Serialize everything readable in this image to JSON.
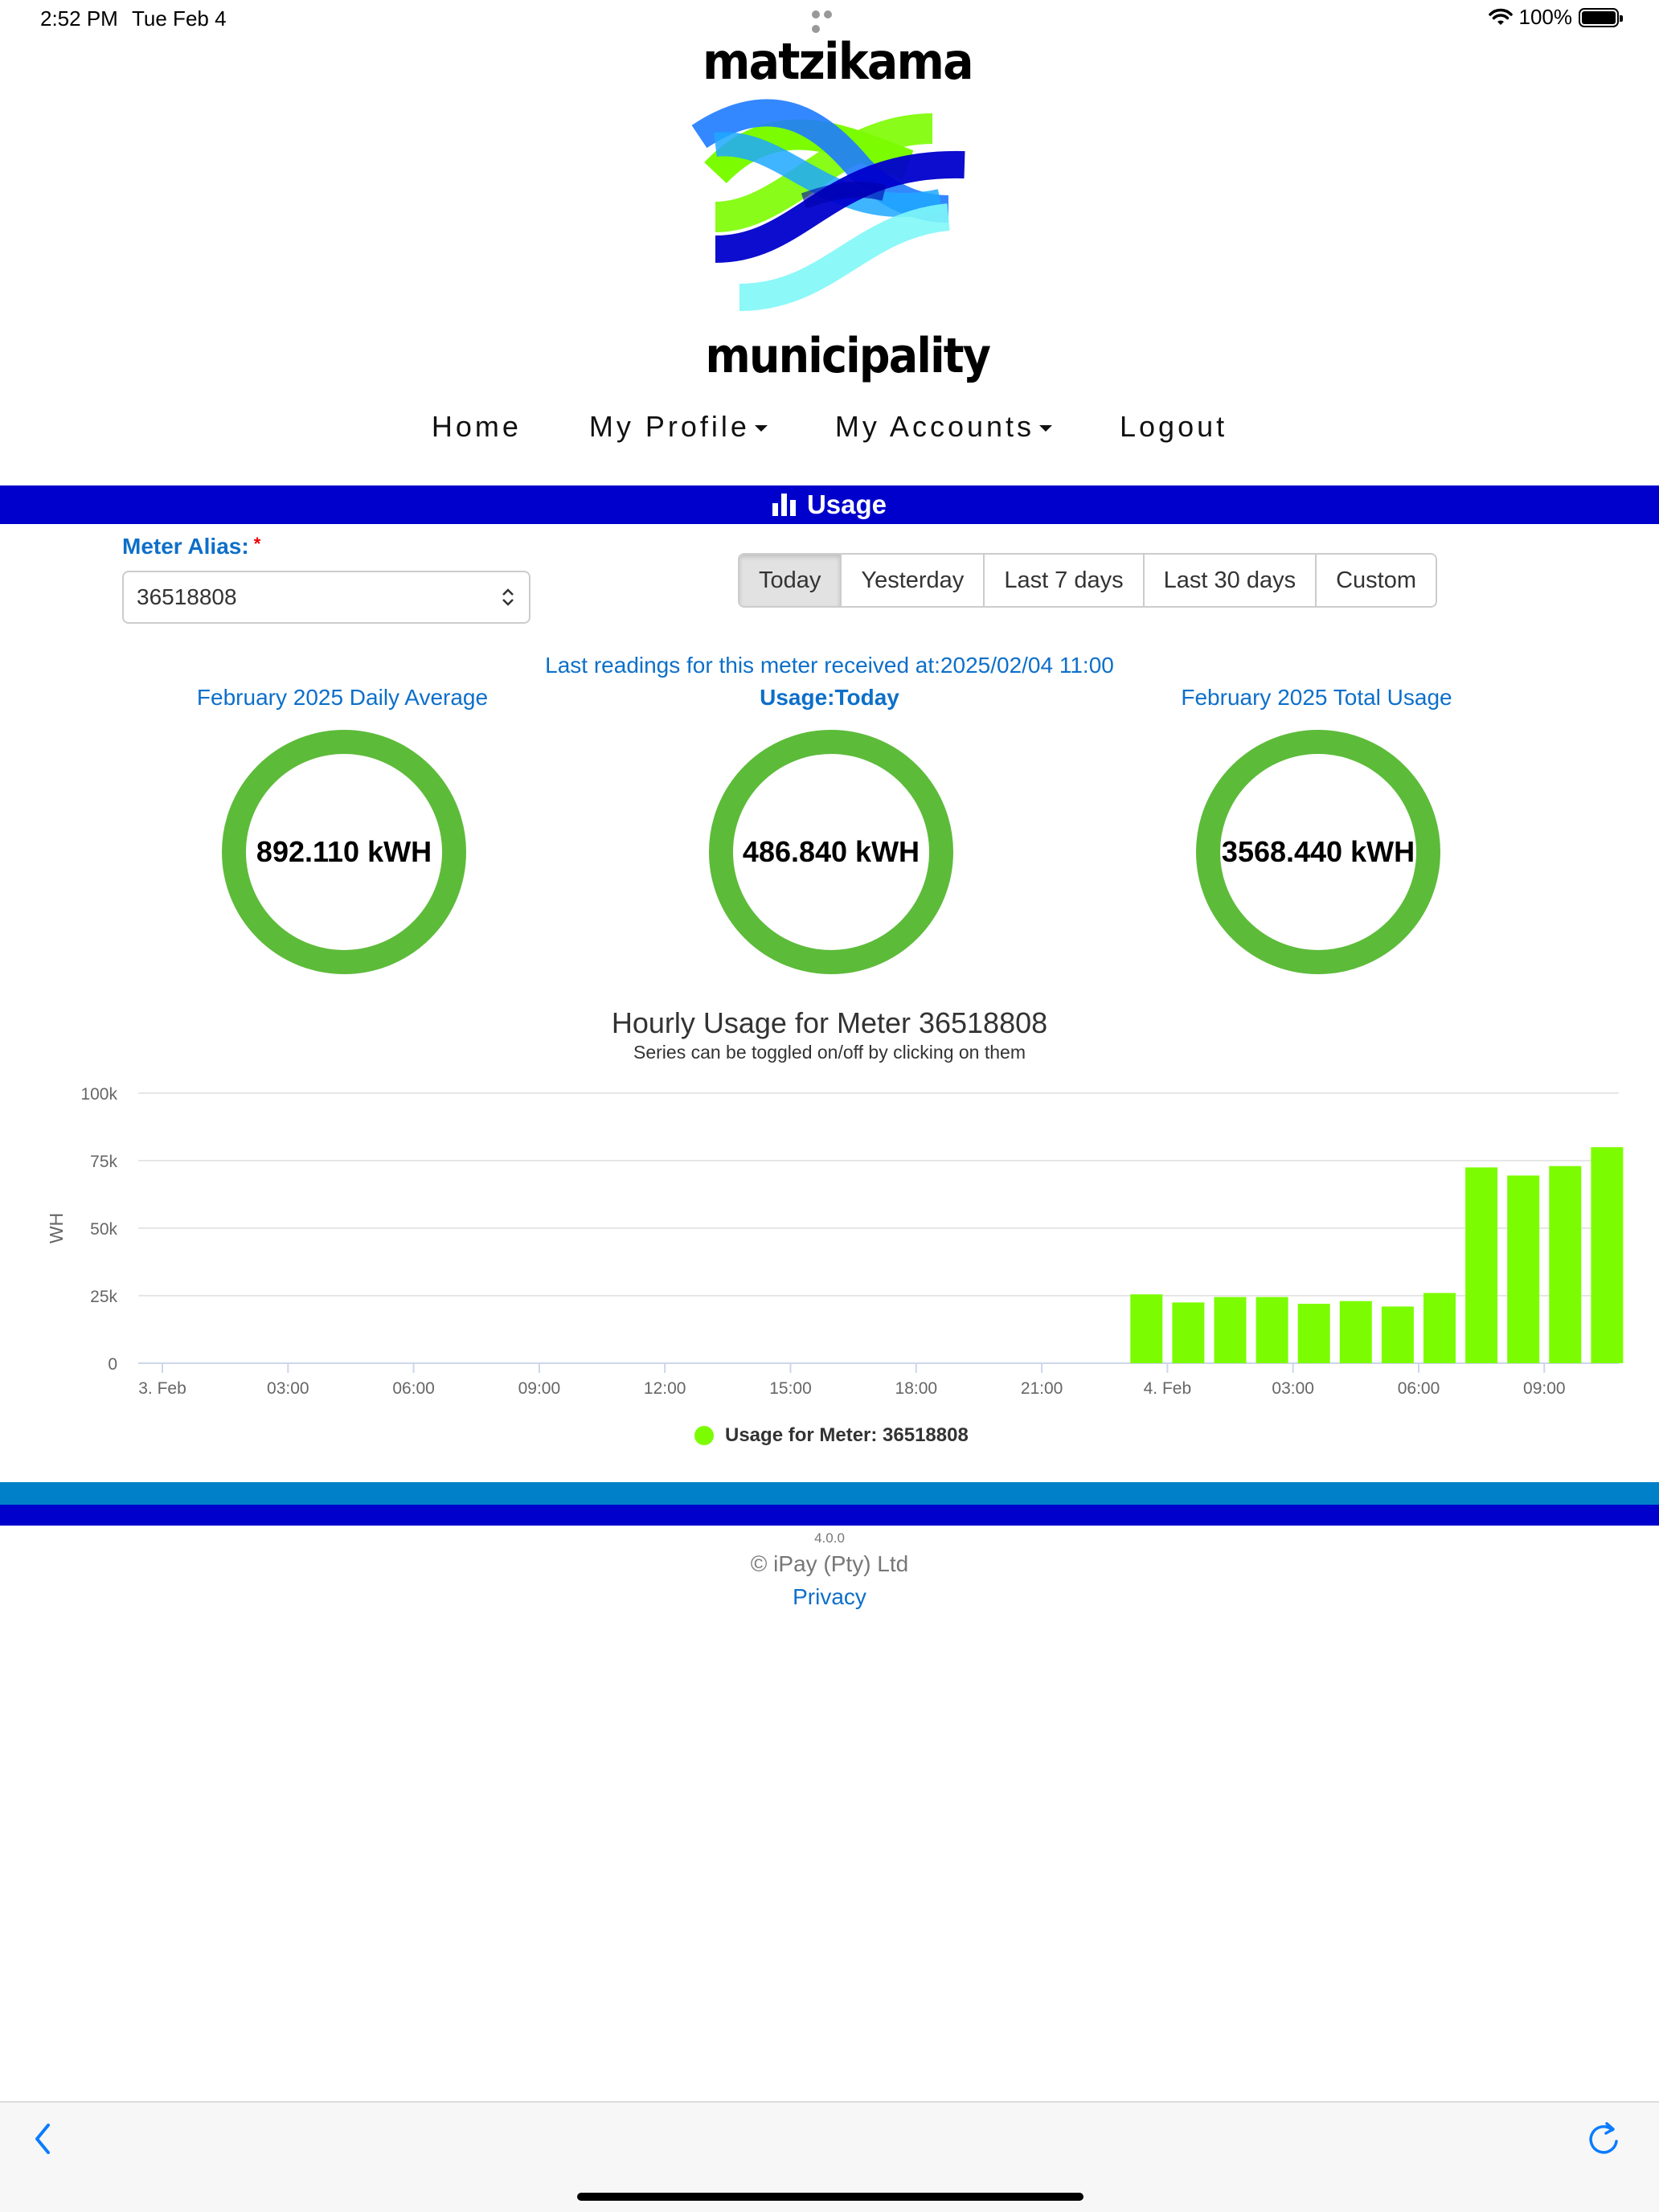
{
  "status": {
    "time": "2:52 PM",
    "date": "Tue Feb 4",
    "battery": "100%"
  },
  "logo": {
    "top_text": "matzikama",
    "bottom_text": "municipality"
  },
  "nav": {
    "home": "Home",
    "profile": "My Profile",
    "accounts": "My Accounts",
    "logout": "Logout"
  },
  "page": {
    "title": "Usage",
    "title_icon": "bar-chart-icon"
  },
  "meter": {
    "label": "Meter Alias:",
    "required_mark": "*",
    "value": "36518808"
  },
  "ranges": {
    "today": "Today",
    "yesterday": "Yesterday",
    "last7": "Last 7 days",
    "last30": "Last 30 days",
    "custom": "Custom",
    "selected": "Today"
  },
  "last_reading": "Last readings for this meter received at:2025/02/04 11:00",
  "stats": {
    "daily_avg": {
      "title": "February 2025 Daily Average",
      "value": "892.110 kWH"
    },
    "today": {
      "title": "Usage:Today",
      "value": "486.840 kWH"
    },
    "total": {
      "title": "February 2025 Total Usage",
      "value": "3568.440 kWH"
    }
  },
  "colors": {
    "brand_blue": "#0000cc",
    "link_blue": "#0d6fc9",
    "ring_green": "#5dbb3a",
    "bar_green": "#7cfc00",
    "band_blue": "#0080c8"
  },
  "chart": {
    "title": "Hourly Usage for Meter 36518808",
    "subtitle": "Series can be toggled on/off by clicking on them",
    "legend": "Usage for Meter: 36518808"
  },
  "chart_data": {
    "type": "bar",
    "title": "Hourly Usage for Meter 36518808",
    "subtitle": "Series can be toggled on/off by clicking on them",
    "ylabel": "WH",
    "xlabel": "",
    "ylim": [
      0,
      100000
    ],
    "yticks": [
      "0",
      "25k",
      "50k",
      "75k",
      "100k"
    ],
    "xticks": [
      "3. Feb",
      "03:00",
      "06:00",
      "09:00",
      "12:00",
      "15:00",
      "18:00",
      "21:00",
      "4. Feb",
      "03:00",
      "06:00",
      "09:00"
    ],
    "grid": true,
    "legend_position": "bottom-center",
    "series": [
      {
        "name": "Usage for Meter: 36518808",
        "color": "#7cfc00",
        "x": [
          "2025-02-03 23:00",
          "2025-02-04 00:00",
          "2025-02-04 01:00",
          "2025-02-04 02:00",
          "2025-02-04 03:00",
          "2025-02-04 04:00",
          "2025-02-04 05:00",
          "2025-02-04 06:00",
          "2025-02-04 07:00",
          "2025-02-04 08:00",
          "2025-02-04 09:00",
          "2025-02-04 10:00"
        ],
        "values": [
          25500,
          22500,
          24500,
          24500,
          22000,
          23000,
          21000,
          26000,
          72500,
          69500,
          73000,
          80000
        ]
      }
    ]
  },
  "footer": {
    "version": "4.0.0",
    "copyright": "© iPay (Pty) Ltd",
    "privacy": "Privacy"
  }
}
